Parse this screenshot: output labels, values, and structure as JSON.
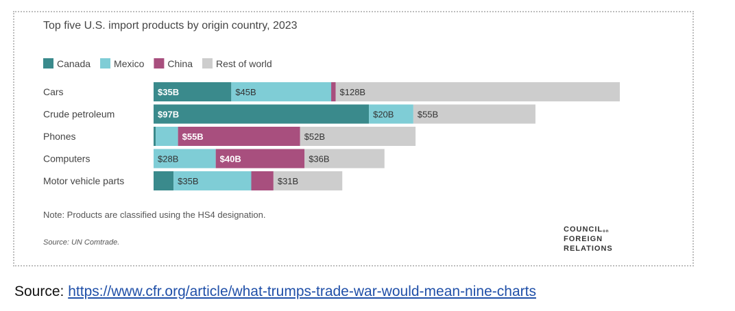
{
  "chart_data": {
    "type": "bar",
    "orientation": "horizontal",
    "stacked": true,
    "title": "Top five U.S. import products by origin country, 2023",
    "categories": [
      "Cars",
      "Crude petroleum",
      "Phones",
      "Computers",
      "Motor vehicle parts"
    ],
    "series": [
      {
        "name": "Canada",
        "color": "#3a8a8c",
        "values": [
          35,
          97,
          1,
          0,
          9
        ],
        "labels": [
          "$35B",
          "$97B",
          "",
          "",
          ""
        ]
      },
      {
        "name": "Mexico",
        "color": "#7fcdd6",
        "values": [
          45,
          20,
          10,
          28,
          35
        ],
        "labels": [
          "$45B",
          "$20B",
          "",
          "$28B",
          "$35B"
        ]
      },
      {
        "name": "China",
        "color": "#a84f7e",
        "values": [
          2,
          0,
          55,
          40,
          10
        ],
        "labels": [
          "",
          "",
          "$55B",
          "$40B",
          ""
        ]
      },
      {
        "name": "Rest of world",
        "color": "#cdcdcd",
        "values": [
          128,
          55,
          52,
          36,
          31
        ],
        "labels": [
          "$128B",
          "$55B",
          "$52B",
          "$36B",
          "$31B"
        ]
      }
    ],
    "xlim": [
      0,
      210
    ],
    "grid": false,
    "legend": "top-left",
    "note": "Note: Products are classified using the HS4 designation.",
    "source": "Source: UN Comtrade."
  },
  "logo": {
    "line1": "COUNCIL",
    "line1_suffix": "on",
    "line2": "FOREIGN",
    "line3": "RELATIONS"
  },
  "footer": {
    "prefix": "Source: ",
    "link_text": "https://www.cfr.org/article/what-trumps-trade-war-would-mean-nine-charts"
  }
}
